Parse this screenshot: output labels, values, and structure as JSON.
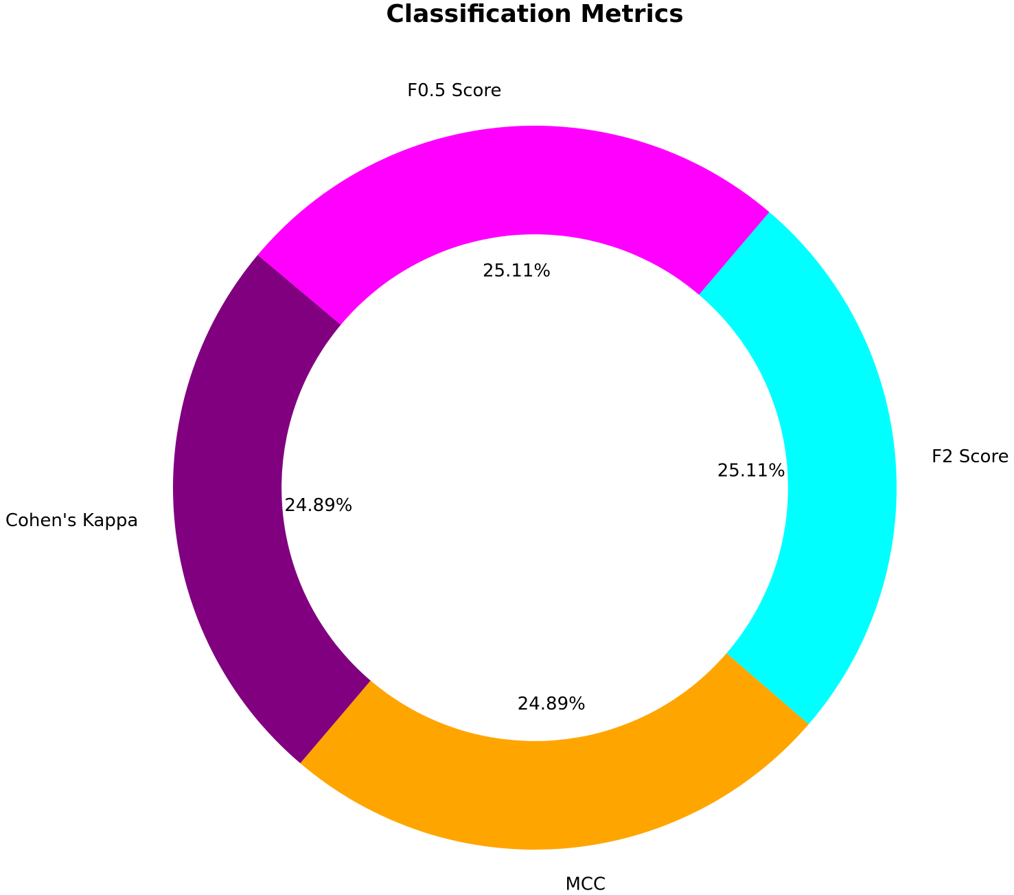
{
  "chart_data": {
    "type": "donut",
    "title": "Classification Metrics",
    "categories": [
      "F2 Score",
      "F0.5 Score",
      "Cohen's Kappa",
      "MCC"
    ],
    "values": [
      25.11,
      25.11,
      24.89,
      24.89
    ],
    "value_labels": [
      "25.11%",
      "25.11%",
      "24.89%",
      "24.89%"
    ],
    "colors": [
      "#00ffff",
      "#ff00ff",
      "#800080",
      "#ffa500"
    ]
  }
}
